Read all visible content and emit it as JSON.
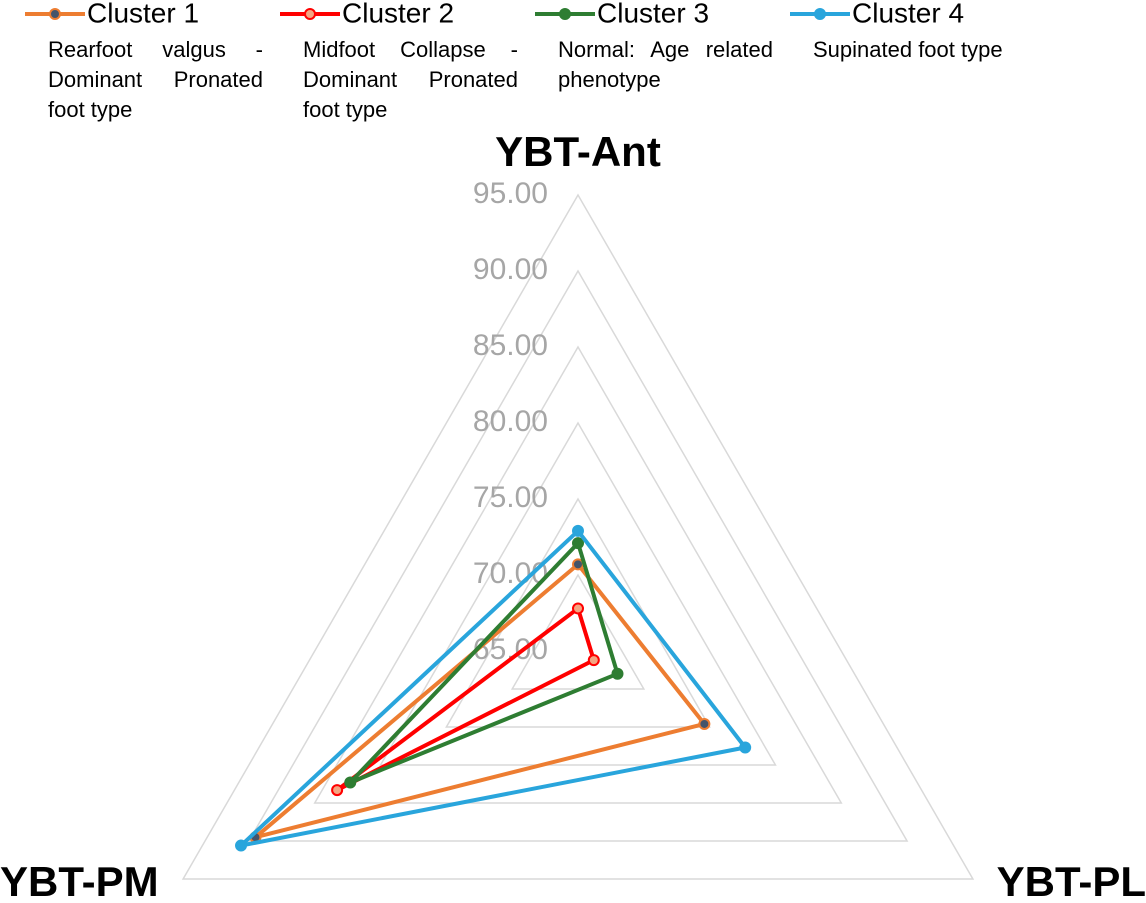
{
  "chart_data": {
    "type": "radar",
    "categories": [
      "YBT-Ant",
      "YBT-PL",
      "YBT-PM"
    ],
    "ylim": [
      65,
      95
    ],
    "yticks": [
      {
        "value": 65,
        "label": "65.00"
      },
      {
        "value": 70,
        "label": "70.00"
      },
      {
        "value": 75,
        "label": "75.00"
      },
      {
        "value": 80,
        "label": "80.00"
      },
      {
        "value": 85,
        "label": "85.00"
      },
      {
        "value": 90,
        "label": "90.00"
      },
      {
        "value": 95,
        "label": "95.00"
      }
    ],
    "grid": true,
    "legend": "top",
    "series": [
      {
        "name": "Cluster 1",
        "description": "Rearfoot valgus -Dominant Pronated foot type",
        "color": "#ED7D31",
        "marker_color": "#44546A",
        "values": [
          70.7,
          74.6,
          89.5
        ]
      },
      {
        "name": "Cluster 2",
        "description": "Midfoot Collapse -Dominant Pronated foot type",
        "color": "#FF0000",
        "marker_color": "#F4A582",
        "values": [
          67.8,
          66.2,
          83.3
        ]
      },
      {
        "name": "Cluster 3",
        "description": "Normal: Age related phenotype",
        "color": "#2E7D32",
        "marker_color": "#2E7D32",
        "values": [
          72.1,
          68.0,
          82.3
        ]
      },
      {
        "name": "Cluster 4",
        "description": "Supinated foot type",
        "color": "#29A5DC",
        "marker_color": "#29A5DC",
        "values": [
          72.9,
          77.7,
          90.6
        ]
      }
    ]
  }
}
